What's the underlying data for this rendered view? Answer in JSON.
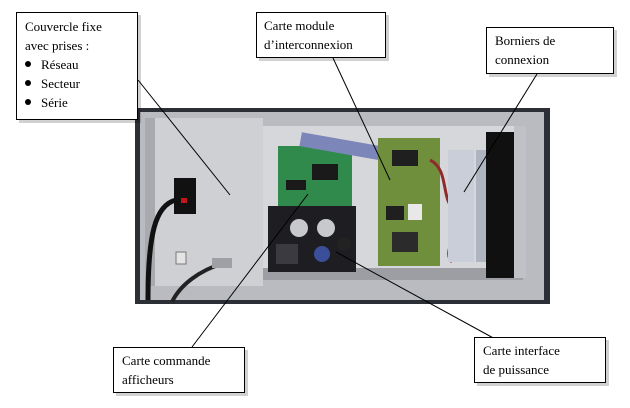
{
  "callouts": {
    "couvercle": {
      "title_line1": "Couvercle fixe",
      "title_line2": "avec prises :",
      "items": [
        "Réseau",
        "Secteur",
        "Série"
      ]
    },
    "module": {
      "line1": "Carte module",
      "line2": "d’interconnexion"
    },
    "borniers": {
      "line1": "Borniers de",
      "line2": "connexion"
    },
    "commande": {
      "line1": "Carte commande",
      "line2": "afficheurs"
    },
    "interface": {
      "line1": "Carte interface",
      "line2": "de puissance"
    }
  },
  "photo": {
    "subject": "Electronic enclosure with circuit boards"
  }
}
